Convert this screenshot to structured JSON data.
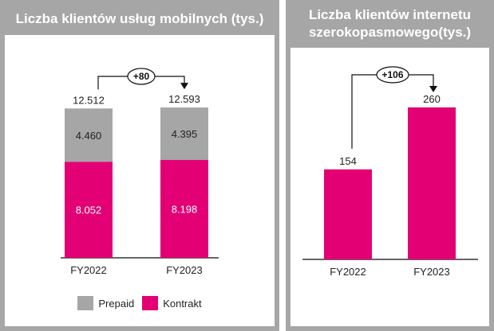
{
  "colors": {
    "prepaid": "#a6a6a6",
    "kontrakt": "#e20074",
    "axis": "#333333"
  },
  "chart_data": [
    {
      "type": "bar",
      "stacked": true,
      "title": "Liczba klientów usług mobilnych (tys.)",
      "categories": [
        "FY2022",
        "FY2023"
      ],
      "series": [
        {
          "name": "Kontrakt",
          "values": [
            8.052,
            8.198
          ],
          "labels": [
            "8.052",
            "8.198"
          ]
        },
        {
          "name": "Prepaid",
          "values": [
            4.46,
            4.395
          ],
          "labels": [
            "4.460",
            "4.395"
          ]
        }
      ],
      "totals": [
        12.512,
        12.593
      ],
      "total_labels": [
        "12.512",
        "12.593"
      ],
      "delta_label": "+80",
      "legend": [
        "Prepaid",
        "Kontrakt"
      ],
      "ylim": [
        0,
        13
      ]
    },
    {
      "type": "bar",
      "title_lines": [
        "Liczba klientów internetu",
        "szerokopasmowego(tys.)"
      ],
      "categories": [
        "FY2022",
        "FY2023"
      ],
      "values": [
        154,
        260
      ],
      "value_labels": [
        "154",
        "260"
      ],
      "delta_label": "+106",
      "ylim": [
        0,
        260
      ]
    }
  ]
}
